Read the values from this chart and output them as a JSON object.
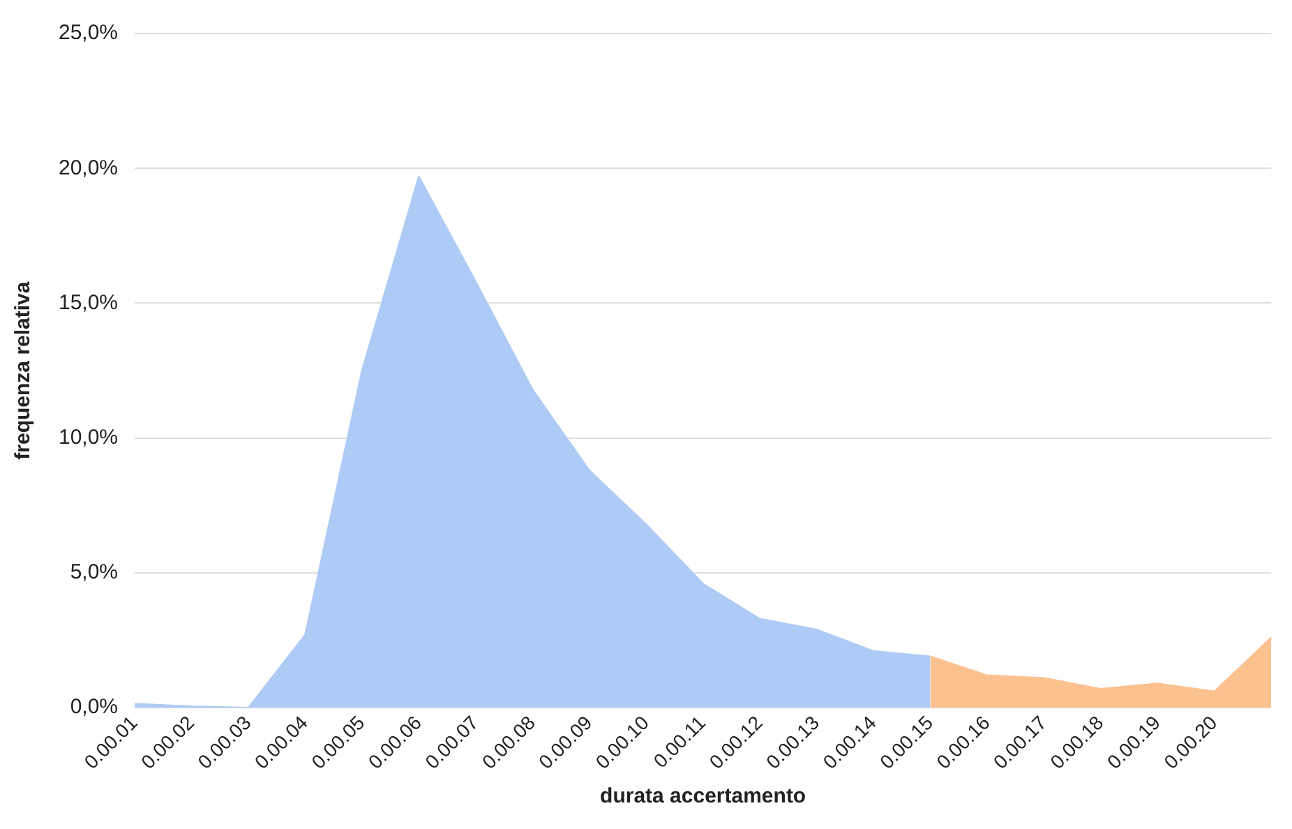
{
  "chart_data": {
    "type": "area",
    "xlabel": "durata accertamento",
    "ylabel": "frequenza relativa",
    "categories": [
      "0.00.01",
      "0.00.02",
      "0.00.03",
      "0.00.04",
      "0.00.05",
      "0.00.06",
      "0.00.07",
      "0.00.08",
      "0.00.09",
      "0.00.10",
      "0.00.11",
      "0.00.12",
      "0.00.13",
      "0.00.14",
      "0.00.15",
      "0.00.16",
      "0.00.17",
      "0.00.18",
      "0.00.19",
      "0.00.20",
      null
    ],
    "series": [
      {
        "color": "#aecbf5",
        "values": [
          0.15,
          0.05,
          0.0,
          2.7,
          12.5,
          19.7,
          15.8,
          11.8,
          8.8,
          6.8,
          4.6,
          3.3,
          2.9,
          2.1,
          1.9,
          null,
          null,
          null,
          null,
          null,
          null
        ]
      },
      {
        "color": "#fbc18f",
        "values": [
          null,
          null,
          null,
          null,
          null,
          null,
          null,
          null,
          null,
          null,
          null,
          null,
          null,
          null,
          1.9,
          1.2,
          1.1,
          0.7,
          0.9,
          0.6,
          2.6
        ]
      }
    ],
    "ylim": [
      0,
      25
    ],
    "yticks": [
      {
        "value": 0,
        "label": "0,0%"
      },
      {
        "value": 5,
        "label": "5,0%"
      },
      {
        "value": 10,
        "label": "10,0%"
      },
      {
        "value": 15,
        "label": "15,0%"
      },
      {
        "value": 20,
        "label": "20,0%"
      },
      {
        "value": 25,
        "label": "25,0%"
      }
    ],
    "grid": "y",
    "legend": false
  }
}
